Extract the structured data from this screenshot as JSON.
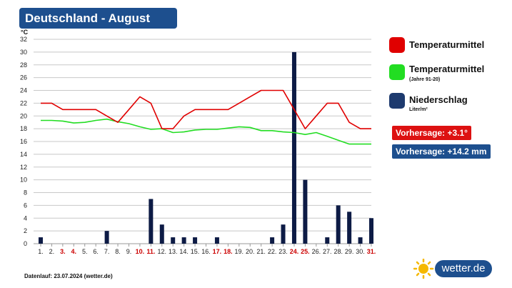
{
  "header": {
    "title": "Deutschland - August"
  },
  "legend": {
    "temp": "Temperaturmittel",
    "temp_normal": "Temperaturmittel",
    "temp_normal_sub": "(Jahre 91-20)",
    "precip": "Niederschlag",
    "precip_unit": "Liter/m²"
  },
  "forecast": {
    "temp": "Vorhersage: +3.1°",
    "precip": "Vorhersage: +14.2 mm"
  },
  "footer": {
    "source": "Datenlauf: 23.07.2024 (wetter.de)"
  },
  "logo": {
    "text": "wetter.de"
  },
  "colors": {
    "temp": "#e00000",
    "temp_normal": "#22dd22",
    "precip": "#0d1b45",
    "title_bg": "#1d4f8e",
    "weekend": "#cc0000"
  },
  "chart_data": {
    "type": "bar",
    "ylabel": "°C",
    "ylim": [
      0,
      32
    ],
    "yticks": [
      0,
      2,
      4,
      6,
      8,
      10,
      12,
      14,
      16,
      18,
      20,
      22,
      24,
      26,
      28,
      30,
      32
    ],
    "grid": true,
    "legend_position": "right",
    "categories": [
      "1.",
      "2.",
      "3.",
      "4.",
      "5.",
      "6.",
      "7.",
      "8.",
      "9.",
      "10.",
      "11.",
      "12.",
      "13.",
      "14.",
      "15.",
      "16.",
      "17.",
      "18.",
      "19.",
      "20.",
      "21.",
      "22.",
      "23.",
      "24.",
      "25.",
      "26.",
      "27.",
      "28.",
      "29.",
      "30.",
      "31."
    ],
    "weekend_days": [
      3,
      4,
      10,
      11,
      17,
      18,
      24,
      25,
      31
    ],
    "series": [
      {
        "name": "Niederschlag",
        "type": "bar",
        "values": [
          1,
          0,
          0,
          0,
          0,
          0,
          2,
          0,
          0,
          0,
          7,
          3,
          1,
          1,
          1,
          0,
          1,
          0,
          0,
          0,
          0,
          1,
          3,
          30,
          10,
          0,
          1,
          6,
          5,
          1,
          4
        ]
      },
      {
        "name": "Temperaturmittel",
        "type": "line",
        "values": [
          22,
          22,
          21,
          21,
          21,
          21,
          20,
          19,
          21,
          23,
          22,
          18,
          18,
          20,
          21,
          21,
          21,
          21,
          22,
          23,
          24,
          24,
          24,
          21,
          18,
          20,
          22,
          22,
          19,
          18,
          18
        ]
      },
      {
        "name": "Temperaturmittel (Jahre 91-20)",
        "type": "line",
        "values": [
          19.3,
          19.3,
          19.2,
          18.9,
          19.0,
          19.3,
          19.5,
          19.1,
          18.8,
          18.3,
          17.9,
          18.0,
          17.4,
          17.5,
          17.8,
          17.9,
          17.9,
          18.1,
          18.3,
          18.2,
          17.7,
          17.7,
          17.5,
          17.4,
          17.1,
          17.4,
          16.8,
          16.2,
          15.6,
          15.6,
          15.6
        ]
      }
    ]
  }
}
